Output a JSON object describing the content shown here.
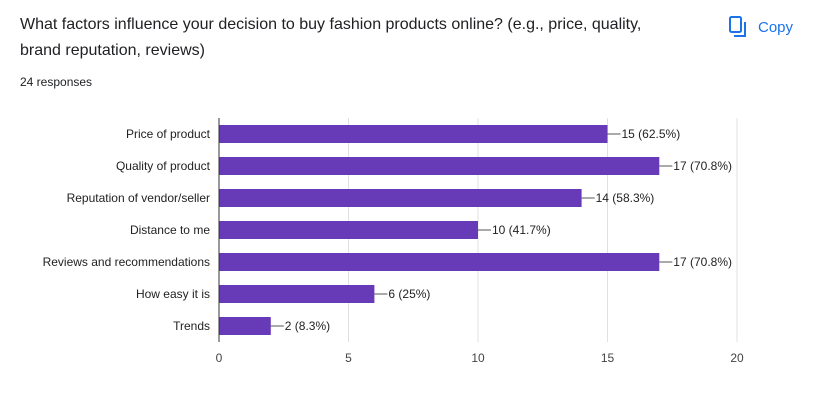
{
  "question": "What factors influence your decision to buy fashion products online? (e.g., price, quality, brand reputation, reviews)",
  "responses_text": "24 responses",
  "copy_label": "Copy",
  "colors": {
    "bar": "#673ab7",
    "accent": "#1a73e8",
    "grid": "#e0e0e0",
    "axis": "#333333"
  },
  "chart_data": {
    "type": "bar",
    "orientation": "horizontal",
    "categories": [
      "Price of product",
      "Quality of product",
      "Reputation of vendor/seller",
      "Distance to me",
      "Reviews and recommendations",
      "How easy it is",
      "Trends"
    ],
    "values": [
      15,
      17,
      14,
      10,
      17,
      6,
      2
    ],
    "value_labels": [
      "15 (62.5%)",
      "17 (70.8%)",
      "14 (58.3%)",
      "10 (41.7%)",
      "17 (70.8%)",
      "6 (25%)",
      "2 (8.3%)"
    ],
    "xlim": [
      0,
      20
    ],
    "xticks": [
      0,
      5,
      10,
      15,
      20
    ],
    "grid": true
  }
}
